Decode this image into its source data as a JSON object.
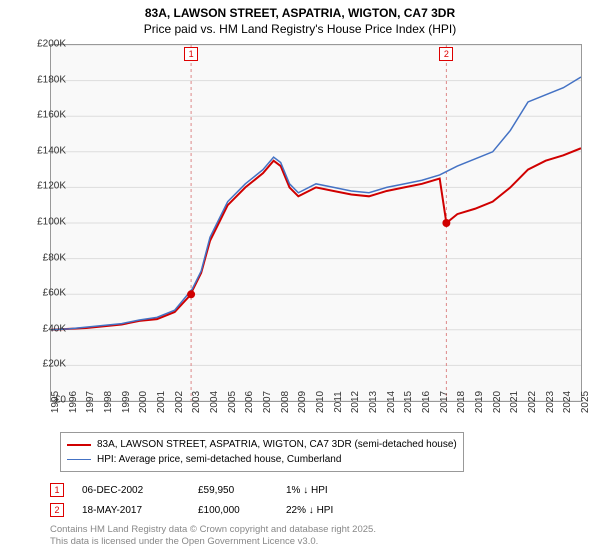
{
  "title": "83A, LAWSON STREET, ASPATRIA, WIGTON, CA7 3DR",
  "subtitle": "Price paid vs. HM Land Registry's House Price Index (HPI)",
  "chart": {
    "type": "line",
    "background_color": "#f9f9f9",
    "grid_color": "#dddddd",
    "border_color": "#999999",
    "ylim": [
      0,
      200000
    ],
    "ytick_step": 20000,
    "ytick_labels": [
      "£0",
      "£20K",
      "£40K",
      "£60K",
      "£80K",
      "£100K",
      "£120K",
      "£140K",
      "£160K",
      "£180K",
      "£200K"
    ],
    "xlim": [
      1995,
      2025
    ],
    "xtick_labels": [
      "1995",
      "1996",
      "1997",
      "1998",
      "1999",
      "2000",
      "2001",
      "2002",
      "2003",
      "2004",
      "2005",
      "2006",
      "2007",
      "2008",
      "2009",
      "2010",
      "2011",
      "2012",
      "2013",
      "2014",
      "2015",
      "2016",
      "2017",
      "2018",
      "2019",
      "2020",
      "2021",
      "2022",
      "2023",
      "2024",
      "2025"
    ],
    "label_fontsize": 10,
    "title_fontsize": 12,
    "series": [
      {
        "name": "property",
        "label": "83A, LAWSON STREET, ASPATRIA, WIGTON, CA7 3DR (semi-detached house)",
        "color": "#d00000",
        "line_width": 2,
        "data": [
          [
            1995,
            40000
          ],
          [
            1996,
            40500
          ],
          [
            1997,
            41000
          ],
          [
            1998,
            42000
          ],
          [
            1999,
            43000
          ],
          [
            2000,
            45000
          ],
          [
            2001,
            46000
          ],
          [
            2002,
            50000
          ],
          [
            2002.93,
            59950
          ],
          [
            2003,
            62000
          ],
          [
            2003.5,
            72000
          ],
          [
            2004,
            90000
          ],
          [
            2004.5,
            100000
          ],
          [
            2005,
            110000
          ],
          [
            2005.5,
            115000
          ],
          [
            2006,
            120000
          ],
          [
            2007,
            128000
          ],
          [
            2007.6,
            135000
          ],
          [
            2008,
            132000
          ],
          [
            2008.5,
            120000
          ],
          [
            2009,
            115000
          ],
          [
            2010,
            120000
          ],
          [
            2011,
            118000
          ],
          [
            2012,
            116000
          ],
          [
            2013,
            115000
          ],
          [
            2014,
            118000
          ],
          [
            2015,
            120000
          ],
          [
            2016,
            122000
          ],
          [
            2017,
            125000
          ],
          [
            2017.38,
            100000
          ],
          [
            2018,
            105000
          ],
          [
            2019,
            108000
          ],
          [
            2020,
            112000
          ],
          [
            2021,
            120000
          ],
          [
            2022,
            130000
          ],
          [
            2023,
            135000
          ],
          [
            2024,
            138000
          ],
          [
            2025,
            142000
          ]
        ]
      },
      {
        "name": "hpi",
        "label": "HPI: Average price, semi-detached house, Cumberland",
        "color": "#4472c4",
        "line_width": 1.5,
        "data": [
          [
            1995,
            40000
          ],
          [
            1996,
            40500
          ],
          [
            1997,
            41500
          ],
          [
            1998,
            42500
          ],
          [
            1999,
            43500
          ],
          [
            2000,
            45500
          ],
          [
            2001,
            47000
          ],
          [
            2002,
            51000
          ],
          [
            2003,
            63000
          ],
          [
            2003.5,
            73000
          ],
          [
            2004,
            92000
          ],
          [
            2004.5,
            102000
          ],
          [
            2005,
            112000
          ],
          [
            2006,
            122000
          ],
          [
            2007,
            130000
          ],
          [
            2007.6,
            137000
          ],
          [
            2008,
            134000
          ],
          [
            2008.5,
            122000
          ],
          [
            2009,
            117000
          ],
          [
            2010,
            122000
          ],
          [
            2011,
            120000
          ],
          [
            2012,
            118000
          ],
          [
            2013,
            117000
          ],
          [
            2014,
            120000
          ],
          [
            2015,
            122000
          ],
          [
            2016,
            124000
          ],
          [
            2017,
            127000
          ],
          [
            2018,
            132000
          ],
          [
            2019,
            136000
          ],
          [
            2020,
            140000
          ],
          [
            2021,
            152000
          ],
          [
            2022,
            168000
          ],
          [
            2023,
            172000
          ],
          [
            2024,
            176000
          ],
          [
            2025,
            182000
          ]
        ]
      }
    ],
    "markers": [
      {
        "id": "1",
        "x": 2002.93,
        "y": 59950,
        "box_top": true,
        "color": "#d00000"
      },
      {
        "id": "2",
        "x": 2017.38,
        "y": 100000,
        "box_top": true,
        "color": "#d00000"
      }
    ]
  },
  "legend": {
    "border_color": "#999999",
    "fontsize": 10
  },
  "transactions": [
    {
      "id": "1",
      "date": "06-DEC-2002",
      "price": "£59,950",
      "diff": "1% ↓ HPI"
    },
    {
      "id": "2",
      "date": "18-MAY-2017",
      "price": "£100,000",
      "diff": "22% ↓ HPI"
    }
  ],
  "footer_line1": "Contains HM Land Registry data © Crown copyright and database right 2025.",
  "footer_line2": "This data is licensed under the Open Government Licence v3.0."
}
